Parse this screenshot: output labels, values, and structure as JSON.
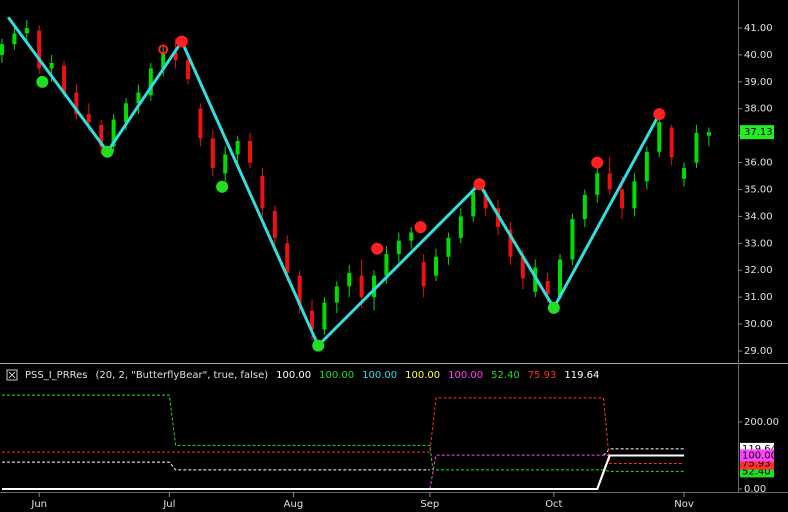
{
  "chart_data": {
    "type": "candlestick",
    "xlim": [
      0,
      118.7
    ],
    "xticks": [
      {
        "value": 6,
        "label": "Jun"
      },
      {
        "value": 27,
        "label": "Jul"
      },
      {
        "value": 47,
        "label": "Aug"
      },
      {
        "value": 69,
        "label": "Sep"
      },
      {
        "value": 89,
        "label": "Oct"
      },
      {
        "value": 110,
        "label": "Nov"
      }
    ],
    "ylim": [
      28.59,
      42.04
    ],
    "yticks": [
      {
        "value": 29,
        "label": "29.00"
      },
      {
        "value": 30,
        "label": "30.00"
      },
      {
        "value": 31,
        "label": "31.00"
      },
      {
        "value": 32,
        "label": "32.00"
      },
      {
        "value": 33,
        "label": "33.00"
      },
      {
        "value": 34,
        "label": "34.00"
      },
      {
        "value": 35,
        "label": "35.00"
      },
      {
        "value": 36,
        "label": "36.00"
      },
      {
        "value": 37,
        "label": "37.00"
      },
      {
        "value": 38,
        "label": "38.00"
      },
      {
        "value": 39,
        "label": "39.00"
      },
      {
        "value": 40,
        "label": "40.00"
      },
      {
        "value": 41,
        "label": "41.00"
      }
    ],
    "up_color": "#00dd00",
    "down_color": "#ee1111",
    "candles": [
      [
        0,
        40.0,
        40.6,
        39.7,
        40.4
      ],
      [
        2,
        40.4,
        41.0,
        40.2,
        40.8
      ],
      [
        4,
        40.8,
        41.3,
        40.4,
        41.0
      ],
      [
        6,
        40.9,
        41.1,
        39.3,
        39.5
      ],
      [
        8,
        39.5,
        40.0,
        39.0,
        39.7
      ],
      [
        10,
        39.6,
        39.8,
        38.4,
        38.6
      ],
      [
        12,
        38.6,
        38.9,
        37.6,
        37.8
      ],
      [
        14,
        37.8,
        38.2,
        37.2,
        37.5
      ],
      [
        16,
        37.4,
        37.6,
        36.3,
        36.6
      ],
      [
        18,
        36.6,
        37.8,
        36.4,
        37.6
      ],
      [
        20,
        37.5,
        38.4,
        37.2,
        38.2
      ],
      [
        22,
        38.2,
        38.9,
        37.8,
        38.6
      ],
      [
        24,
        38.5,
        39.7,
        38.3,
        39.5
      ],
      [
        26,
        39.5,
        40.3,
        39.2,
        40.1
      ],
      [
        28,
        40.1,
        40.6,
        39.5,
        39.8
      ],
      [
        30,
        39.8,
        40.0,
        38.9,
        39.1
      ],
      [
        32,
        38.0,
        38.2,
        36.6,
        36.9
      ],
      [
        34,
        36.9,
        37.2,
        35.5,
        35.8
      ],
      [
        36,
        35.6,
        36.6,
        35.3,
        36.3
      ],
      [
        38,
        36.3,
        37.0,
        36.0,
        36.8
      ],
      [
        40,
        36.8,
        37.1,
        35.8,
        36.0
      ],
      [
        42,
        35.5,
        35.8,
        34.0,
        34.3
      ],
      [
        44,
        34.2,
        34.4,
        32.9,
        33.2
      ],
      [
        46,
        33.0,
        33.3,
        31.6,
        31.9
      ],
      [
        48,
        31.8,
        32.0,
        30.4,
        30.7
      ],
      [
        50,
        30.5,
        30.9,
        29.4,
        29.8
      ],
      [
        52,
        29.8,
        31.0,
        29.6,
        30.8
      ],
      [
        54,
        30.8,
        31.6,
        30.4,
        31.4
      ],
      [
        56,
        31.4,
        32.2,
        31.0,
        31.9
      ],
      [
        58,
        31.8,
        32.4,
        30.6,
        31.0
      ],
      [
        60,
        31.0,
        32.0,
        30.5,
        31.8
      ],
      [
        62,
        31.8,
        32.9,
        31.5,
        32.6
      ],
      [
        64,
        32.6,
        33.4,
        32.3,
        33.1
      ],
      [
        66,
        33.1,
        33.6,
        32.8,
        33.4
      ],
      [
        68,
        32.3,
        32.6,
        31.0,
        31.4
      ],
      [
        70,
        31.8,
        32.8,
        31.6,
        32.5
      ],
      [
        72,
        32.5,
        33.4,
        32.2,
        33.2
      ],
      [
        74,
        33.2,
        34.3,
        33.0,
        34.0
      ],
      [
        76,
        34.0,
        35.1,
        33.8,
        34.9
      ],
      [
        78,
        34.8,
        35.0,
        34.0,
        34.3
      ],
      [
        80,
        34.3,
        34.6,
        33.3,
        33.6
      ],
      [
        82,
        33.5,
        33.8,
        32.2,
        32.5
      ],
      [
        84,
        32.5,
        32.8,
        31.3,
        31.7
      ],
      [
        86,
        31.2,
        32.4,
        31.0,
        32.1
      ],
      [
        88,
        31.6,
        31.9,
        30.8,
        31.1
      ],
      [
        90,
        31.0,
        32.6,
        30.9,
        32.4
      ],
      [
        92,
        32.4,
        34.1,
        32.2,
        33.9
      ],
      [
        94,
        33.9,
        35.0,
        33.6,
        34.8
      ],
      [
        96,
        34.8,
        35.8,
        34.5,
        35.6
      ],
      [
        98,
        35.6,
        36.2,
        34.8,
        35.0
      ],
      [
        100,
        35.0,
        35.5,
        33.9,
        34.3
      ],
      [
        102,
        34.3,
        35.6,
        34.0,
        35.3
      ],
      [
        104,
        35.3,
        36.6,
        35.0,
        36.4
      ],
      [
        106,
        36.4,
        37.7,
        36.2,
        37.5
      ],
      [
        108,
        37.3,
        37.4,
        35.9,
        36.2
      ],
      [
        110,
        35.4,
        36.0,
        35.1,
        35.8
      ],
      [
        112,
        36.0,
        37.4,
        35.8,
        37.1
      ],
      [
        114,
        37.0,
        37.3,
        36.6,
        37.13
      ]
    ],
    "zigzag": {
      "color": "#33dddd",
      "x": [
        1,
        17,
        29,
        51,
        77,
        89,
        106
      ],
      "values": [
        41.4,
        36.4,
        40.5,
        29.2,
        35.2,
        30.6,
        37.8
      ]
    },
    "markers": {
      "x": [
        6.5,
        17,
        26,
        29,
        35.5,
        51,
        60.5,
        67.5,
        77,
        89,
        96,
        106
      ],
      "values": [
        39.0,
        36.4,
        40.2,
        40.5,
        35.1,
        29.2,
        32.8,
        33.6,
        35.2,
        30.6,
        36.0,
        37.8
      ],
      "colors": [
        "#22dd22",
        "#22dd22",
        "#ff2020",
        "#ff2020",
        "#22dd22",
        "#22dd22",
        "#ff2020",
        "#ff2020",
        "#ff2020",
        "#22dd22",
        "#ff2020",
        "#ff2020"
      ],
      "styles": [
        "filled",
        "filled",
        "hollow",
        "filled",
        "filled",
        "filled",
        "filled",
        "filled",
        "filled",
        "filled",
        "filled",
        "filled"
      ]
    },
    "last_price": {
      "value": 37.13,
      "color": "#22ee22"
    },
    "indicator": {
      "name": "PSS_I_PRRes",
      "params": "(20, 2, \"ButterflyBear\", true, false)",
      "legend_values": [
        {
          "value": 100,
          "label": "100.00",
          "color": "#ffffff"
        },
        {
          "value": 100,
          "label": "100.00",
          "color": "#22dd22"
        },
        {
          "value": 100,
          "label": "100.00",
          "color": "#33dddd"
        },
        {
          "value": 100,
          "label": "100.00",
          "color": "#ffff44"
        },
        {
          "value": 100,
          "label": "100.00",
          "color": "#ff44ff"
        },
        {
          "value": 52.4,
          "label": "52.40",
          "color": "#22dd22"
        },
        {
          "value": 75.93,
          "label": "75.93",
          "color": "#ff3030"
        },
        {
          "value": 119.64,
          "label": "119.64",
          "color": "#ffffff"
        }
      ],
      "ylim": [
        -9,
        370
      ],
      "yticks": [
        {
          "value": 0,
          "label": "0.00"
        },
        {
          "value": 200,
          "label": "200.00"
        }
      ],
      "series": [
        {
          "color": "#22dd22",
          "dash": true,
          "x": [
            0,
            27,
            28,
            69,
            69.5,
            97,
            98,
            110
          ],
          "values": [
            280,
            280,
            130,
            130,
            57,
            57,
            52.4,
            52.4
          ],
          "tag": {
            "value": 52.4,
            "label": "52.40"
          }
        },
        {
          "color": "#ffffff",
          "dash": true,
          "x": [
            0,
            27,
            28,
            69
          ],
          "values": [
            80,
            80,
            57,
            57
          ]
        },
        {
          "color": "#ffffff",
          "dash": true,
          "x": [
            97,
            98,
            110
          ],
          "values": [
            100,
            119.64,
            119.64
          ],
          "tag": 119.64
        },
        {
          "color": "#ff3030",
          "dash": true,
          "x": [
            0,
            69,
            70,
            97,
            98,
            110
          ],
          "values": [
            110,
            110,
            272,
            272,
            75.93,
            75.93
          ],
          "tag": 75.93
        },
        {
          "color": "#ff44ff",
          "dash": true,
          "x": [
            69,
            70,
            97,
            98,
            110
          ],
          "values": [
            0,
            101,
            101,
            100,
            100
          ],
          "tag": {
            "value": 100,
            "label": "100.00"
          }
        },
        {
          "color": "#ffff44",
          "dash": false,
          "x": [
            0,
            96,
            98,
            110
          ],
          "values": [
            0,
            0,
            100,
            100
          ]
        },
        {
          "color": "#ffffff",
          "dash": false,
          "x": [
            0,
            96,
            98,
            110
          ],
          "values": [
            0,
            0,
            100,
            100
          ]
        }
      ]
    }
  }
}
